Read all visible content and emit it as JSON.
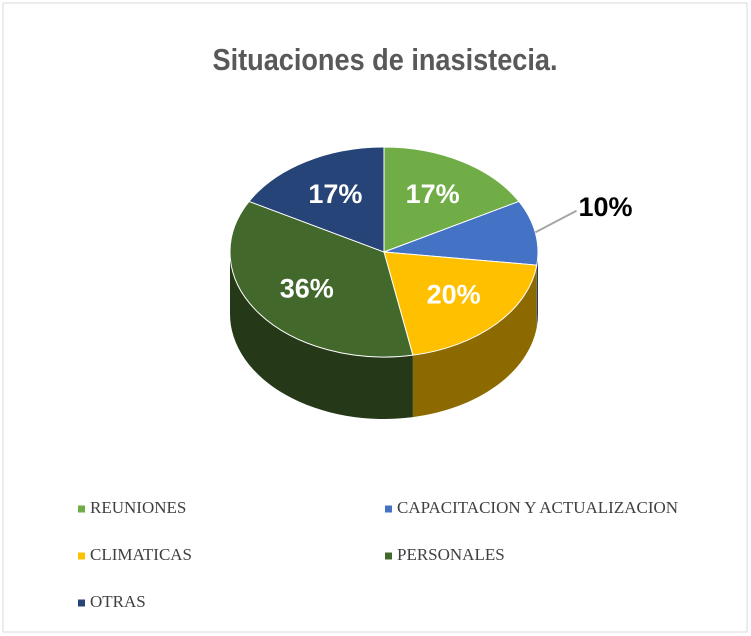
{
  "chart_data": {
    "type": "pie3d",
    "title": "Situaciones de inasistecia.",
    "categories": [
      "REUNIONES",
      "CAPACITACION Y ACTUALIZACION",
      "CLIMATICAS",
      "PERSONALES",
      "OTRAS"
    ],
    "values": [
      17,
      10,
      20,
      36,
      17
    ],
    "value_labels": [
      "17%",
      "10%",
      "20%",
      "36%",
      "17%"
    ],
    "colors": [
      "#70ad47",
      "#4472c4",
      "#ffc000",
      "#43682b",
      "#264478"
    ],
    "legend": "bottom"
  }
}
